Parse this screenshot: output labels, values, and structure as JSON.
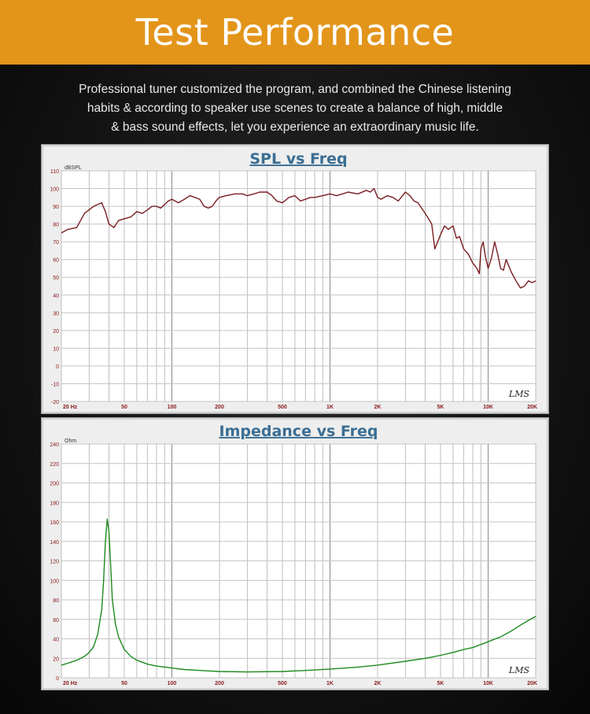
{
  "header": {
    "title": "Test Performance",
    "description_lines": [
      "Professional tuner customized the program, and combined the Chinese listening",
      "habits & according to speaker use scenes to create a balance of high, middle",
      "& bass sound effects, let you experience an extraordinary music life."
    ]
  },
  "colors": {
    "banner": "#e3951a",
    "spl_line": "#7a1e22",
    "imp_line": "#1e8a1e",
    "title": "#3b6e94",
    "tick": "#8a1a1a"
  },
  "chart_data": [
    {
      "type": "line",
      "title": "SPL vs Freq",
      "ylabel": "dBSPL",
      "xscale": "log",
      "xlim": [
        20,
        20000
      ],
      "ylim": [
        -20,
        110
      ],
      "x_tick_labels": [
        "20 Hz",
        "50",
        "100",
        "200",
        "500",
        "1K",
        "2K",
        "5K",
        "10K",
        "20K"
      ],
      "y_tick_labels": [
        "110",
        "100",
        "90",
        "80",
        "70",
        "60",
        "50",
        "40",
        "30",
        "20",
        "10",
        "0",
        "-10",
        "-20"
      ],
      "grid": true,
      "watermark": "LMS",
      "series": [
        {
          "x": [
            20,
            22,
            25,
            28,
            32,
            36,
            38,
            40,
            43,
            46,
            50,
            55,
            60,
            65,
            70,
            75,
            80,
            85,
            90,
            95,
            100,
            110,
            120,
            130,
            140,
            150,
            160,
            170,
            180,
            190,
            200,
            220,
            250,
            280,
            300,
            330,
            360,
            400,
            430,
            460,
            500,
            550,
            600,
            650,
            700,
            750,
            800,
            900,
            1000,
            1100,
            1200,
            1300,
            1500,
            1700,
            1800,
            1900,
            2000,
            2100,
            2300,
            2500,
            2700,
            3000,
            3200,
            3400,
            3600,
            4000,
            4200,
            4400,
            4600,
            4800,
            5000,
            5300,
            5600,
            6000,
            6300,
            6600,
            7000,
            7500,
            8000,
            8500,
            8800,
            9000,
            9300,
            9600,
            10000,
            10500,
            11000,
            11500,
            12000,
            12500,
            13000,
            14000,
            15000,
            16000,
            17000,
            18000,
            19000,
            20000
          ],
          "y": [
            75,
            77,
            78,
            86,
            90,
            92,
            87,
            80,
            78,
            82,
            83,
            84,
            87,
            86,
            88,
            90,
            90,
            89,
            91,
            93,
            94,
            92,
            94,
            96,
            95,
            94,
            90,
            89,
            90,
            93,
            95,
            96,
            97,
            97,
            96,
            97,
            98,
            98,
            96,
            93,
            92,
            95,
            96,
            93,
            94,
            95,
            95,
            96,
            97,
            96,
            97,
            98,
            97,
            99,
            98,
            100,
            95,
            94,
            96,
            95,
            93,
            98,
            96,
            93,
            92,
            86,
            83,
            80,
            66,
            70,
            74,
            79,
            77,
            79,
            72,
            73,
            66,
            63,
            58,
            55,
            52,
            66,
            70,
            62,
            55,
            61,
            70,
            63,
            55,
            54,
            60,
            53,
            48,
            44,
            45,
            48,
            47,
            48
          ]
        }
      ]
    },
    {
      "type": "line",
      "title": "Impedance vs Freq",
      "ylabel": "Ohm",
      "xscale": "log",
      "xlim": [
        20,
        20000
      ],
      "ylim": [
        0,
        240
      ],
      "x_tick_labels": [
        "20 Hz",
        "50",
        "100",
        "200",
        "500",
        "1K",
        "2K",
        "5K",
        "10K",
        "20K"
      ],
      "y_tick_labels": [
        "240",
        "220",
        "200",
        "180",
        "160",
        "140",
        "120",
        "100",
        "80",
        "60",
        "40",
        "20",
        "0"
      ],
      "grid": true,
      "watermark": "LMS",
      "series": [
        {
          "x": [
            20,
            22,
            25,
            28,
            30,
            32,
            34,
            36,
            37,
            38,
            39,
            40,
            41,
            42,
            44,
            46,
            50,
            55,
            60,
            70,
            80,
            100,
            120,
            150,
            200,
            300,
            500,
            700,
            1000,
            1500,
            2000,
            3000,
            4000,
            5000,
            6000,
            7000,
            8000,
            10000,
            12000,
            14000,
            16000,
            18000,
            20000
          ],
          "y": [
            13,
            15,
            18,
            22,
            26,
            32,
            45,
            70,
            100,
            140,
            163,
            150,
            115,
            80,
            55,
            42,
            29,
            22,
            18,
            14,
            12,
            10,
            8.5,
            7.5,
            6.5,
            6,
            6.5,
            7.5,
            9,
            11,
            13,
            17,
            20,
            23,
            26,
            29,
            31,
            37,
            42,
            48,
            54,
            59,
            63
          ]
        }
      ]
    }
  ]
}
